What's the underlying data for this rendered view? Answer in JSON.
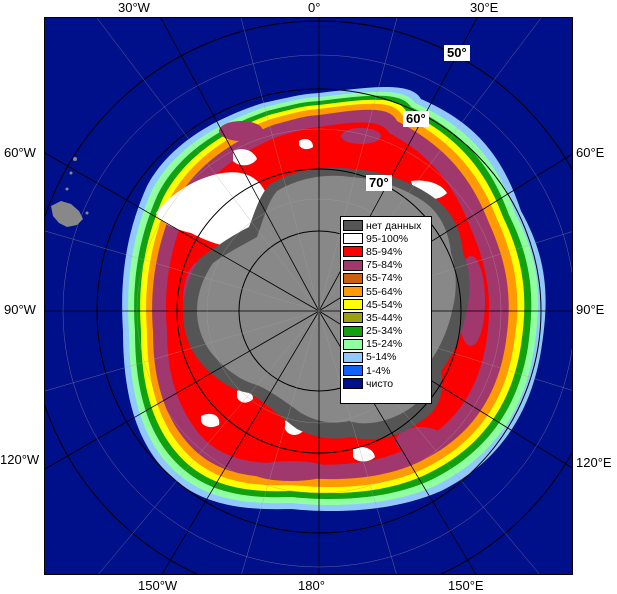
{
  "map": {
    "lon_labels": {
      "w30": "30°W",
      "zero": "0°",
      "e30": "30°E",
      "w60": "60°W",
      "e60": "60°E",
      "w90": "90°W",
      "e90": "90°E",
      "w120": "120°W",
      "e120": "120°E",
      "w150": "150°W",
      "c180": "180°",
      "e150": "150°E"
    },
    "lat_labels": {
      "lat50": "50°",
      "lat60": "60°",
      "lat70": "70°"
    },
    "colors": {
      "ocean": "#000f8a",
      "land": "#888888",
      "no_data": "#555555",
      "ice_95_100": "#ffffff",
      "ice_85_94": "#ff0000",
      "ice_75_84": "#a0386e",
      "ice_65_74": "#cc6010",
      "ice_55_64": "#ff9a00",
      "ice_45_54": "#ffff00",
      "ice_35_44": "#9aa010",
      "ice_25_34": "#10a010",
      "ice_15_24": "#90ffa0",
      "ice_5_14": "#90c8ff",
      "ice_1_4": "#1060ff",
      "clear": "#000f8a"
    }
  },
  "legend": {
    "items": [
      {
        "label": "нет данных",
        "color": "#555555"
      },
      {
        "label": "95-100%",
        "color": "#ffffff"
      },
      {
        "label": "85-94%",
        "color": "#ff0000"
      },
      {
        "label": "75-84%",
        "color": "#a0386e"
      },
      {
        "label": "65-74%",
        "color": "#cc6010"
      },
      {
        "label": "55-64%",
        "color": "#ff9a00"
      },
      {
        "label": "45-54%",
        "color": "#ffff00"
      },
      {
        "label": "35-44%",
        "color": "#9aa010"
      },
      {
        "label": "25-34%",
        "color": "#10a010"
      },
      {
        "label": "15-24%",
        "color": "#90ffa0"
      },
      {
        "label": "5-14%",
        "color": "#90c8ff"
      },
      {
        "label": "1-4%",
        "color": "#1060ff"
      },
      {
        "label": "чисто",
        "color": "#000f8a"
      }
    ]
  }
}
